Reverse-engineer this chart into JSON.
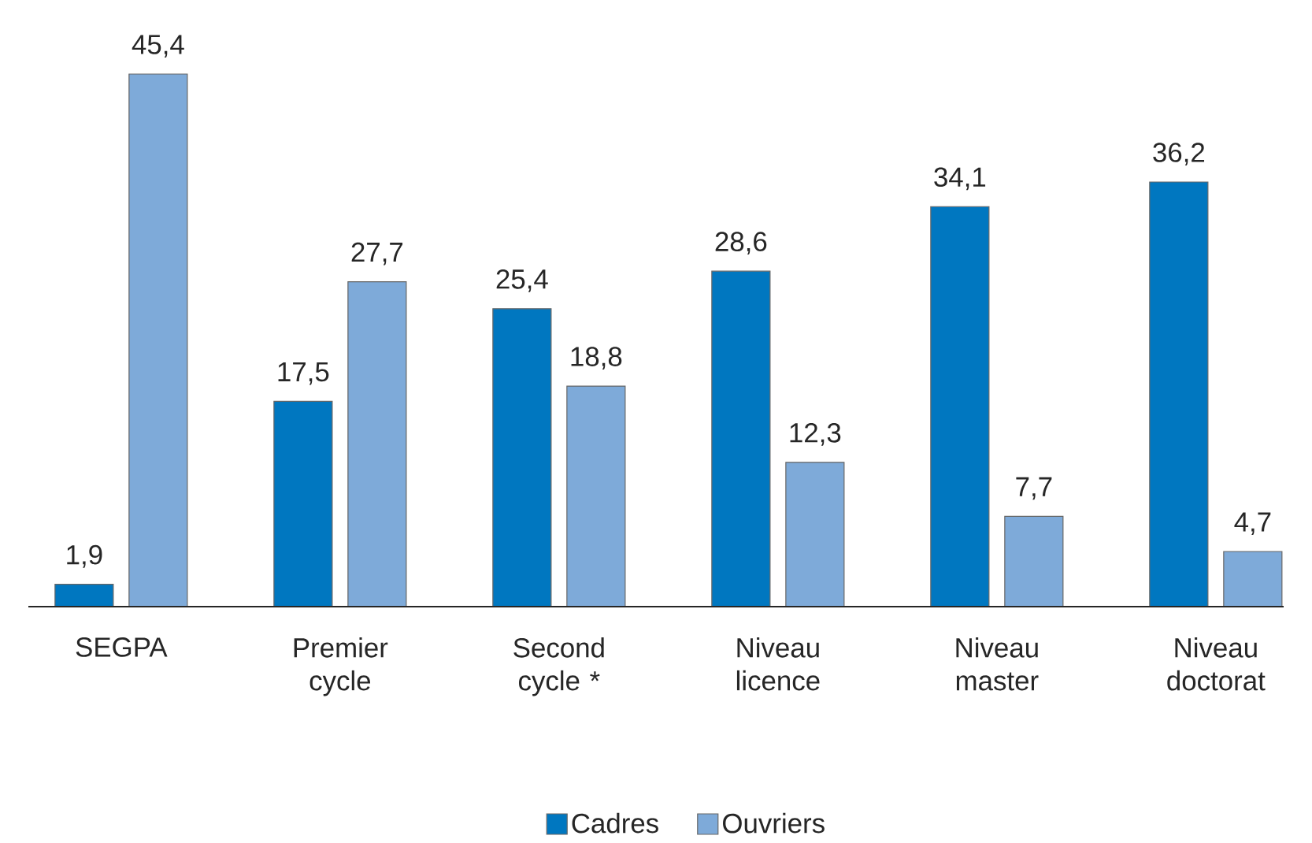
{
  "chart_data": {
    "type": "bar",
    "categories": [
      "SEGPA",
      "Premier cycle",
      "Second cycle *",
      "Niveau licence",
      "Niveau master",
      "Niveau doctorat"
    ],
    "series": [
      {
        "name": "Cadres",
        "color": "#0077c0",
        "values": [
          1.9,
          17.5,
          25.4,
          28.6,
          34.1,
          36.2
        ],
        "value_labels": [
          "1,9",
          "17,5",
          "25,4",
          "28,6",
          "34,1",
          "36,2"
        ]
      },
      {
        "name": "Ouvriers",
        "color": "#7eaad9",
        "values": [
          45.4,
          27.7,
          18.8,
          12.3,
          7.7,
          4.7
        ],
        "value_labels": [
          "45,4",
          "27,7",
          "18,8",
          "12,3",
          "7,7",
          "4,7"
        ]
      }
    ],
    "legend": "bottom"
  }
}
